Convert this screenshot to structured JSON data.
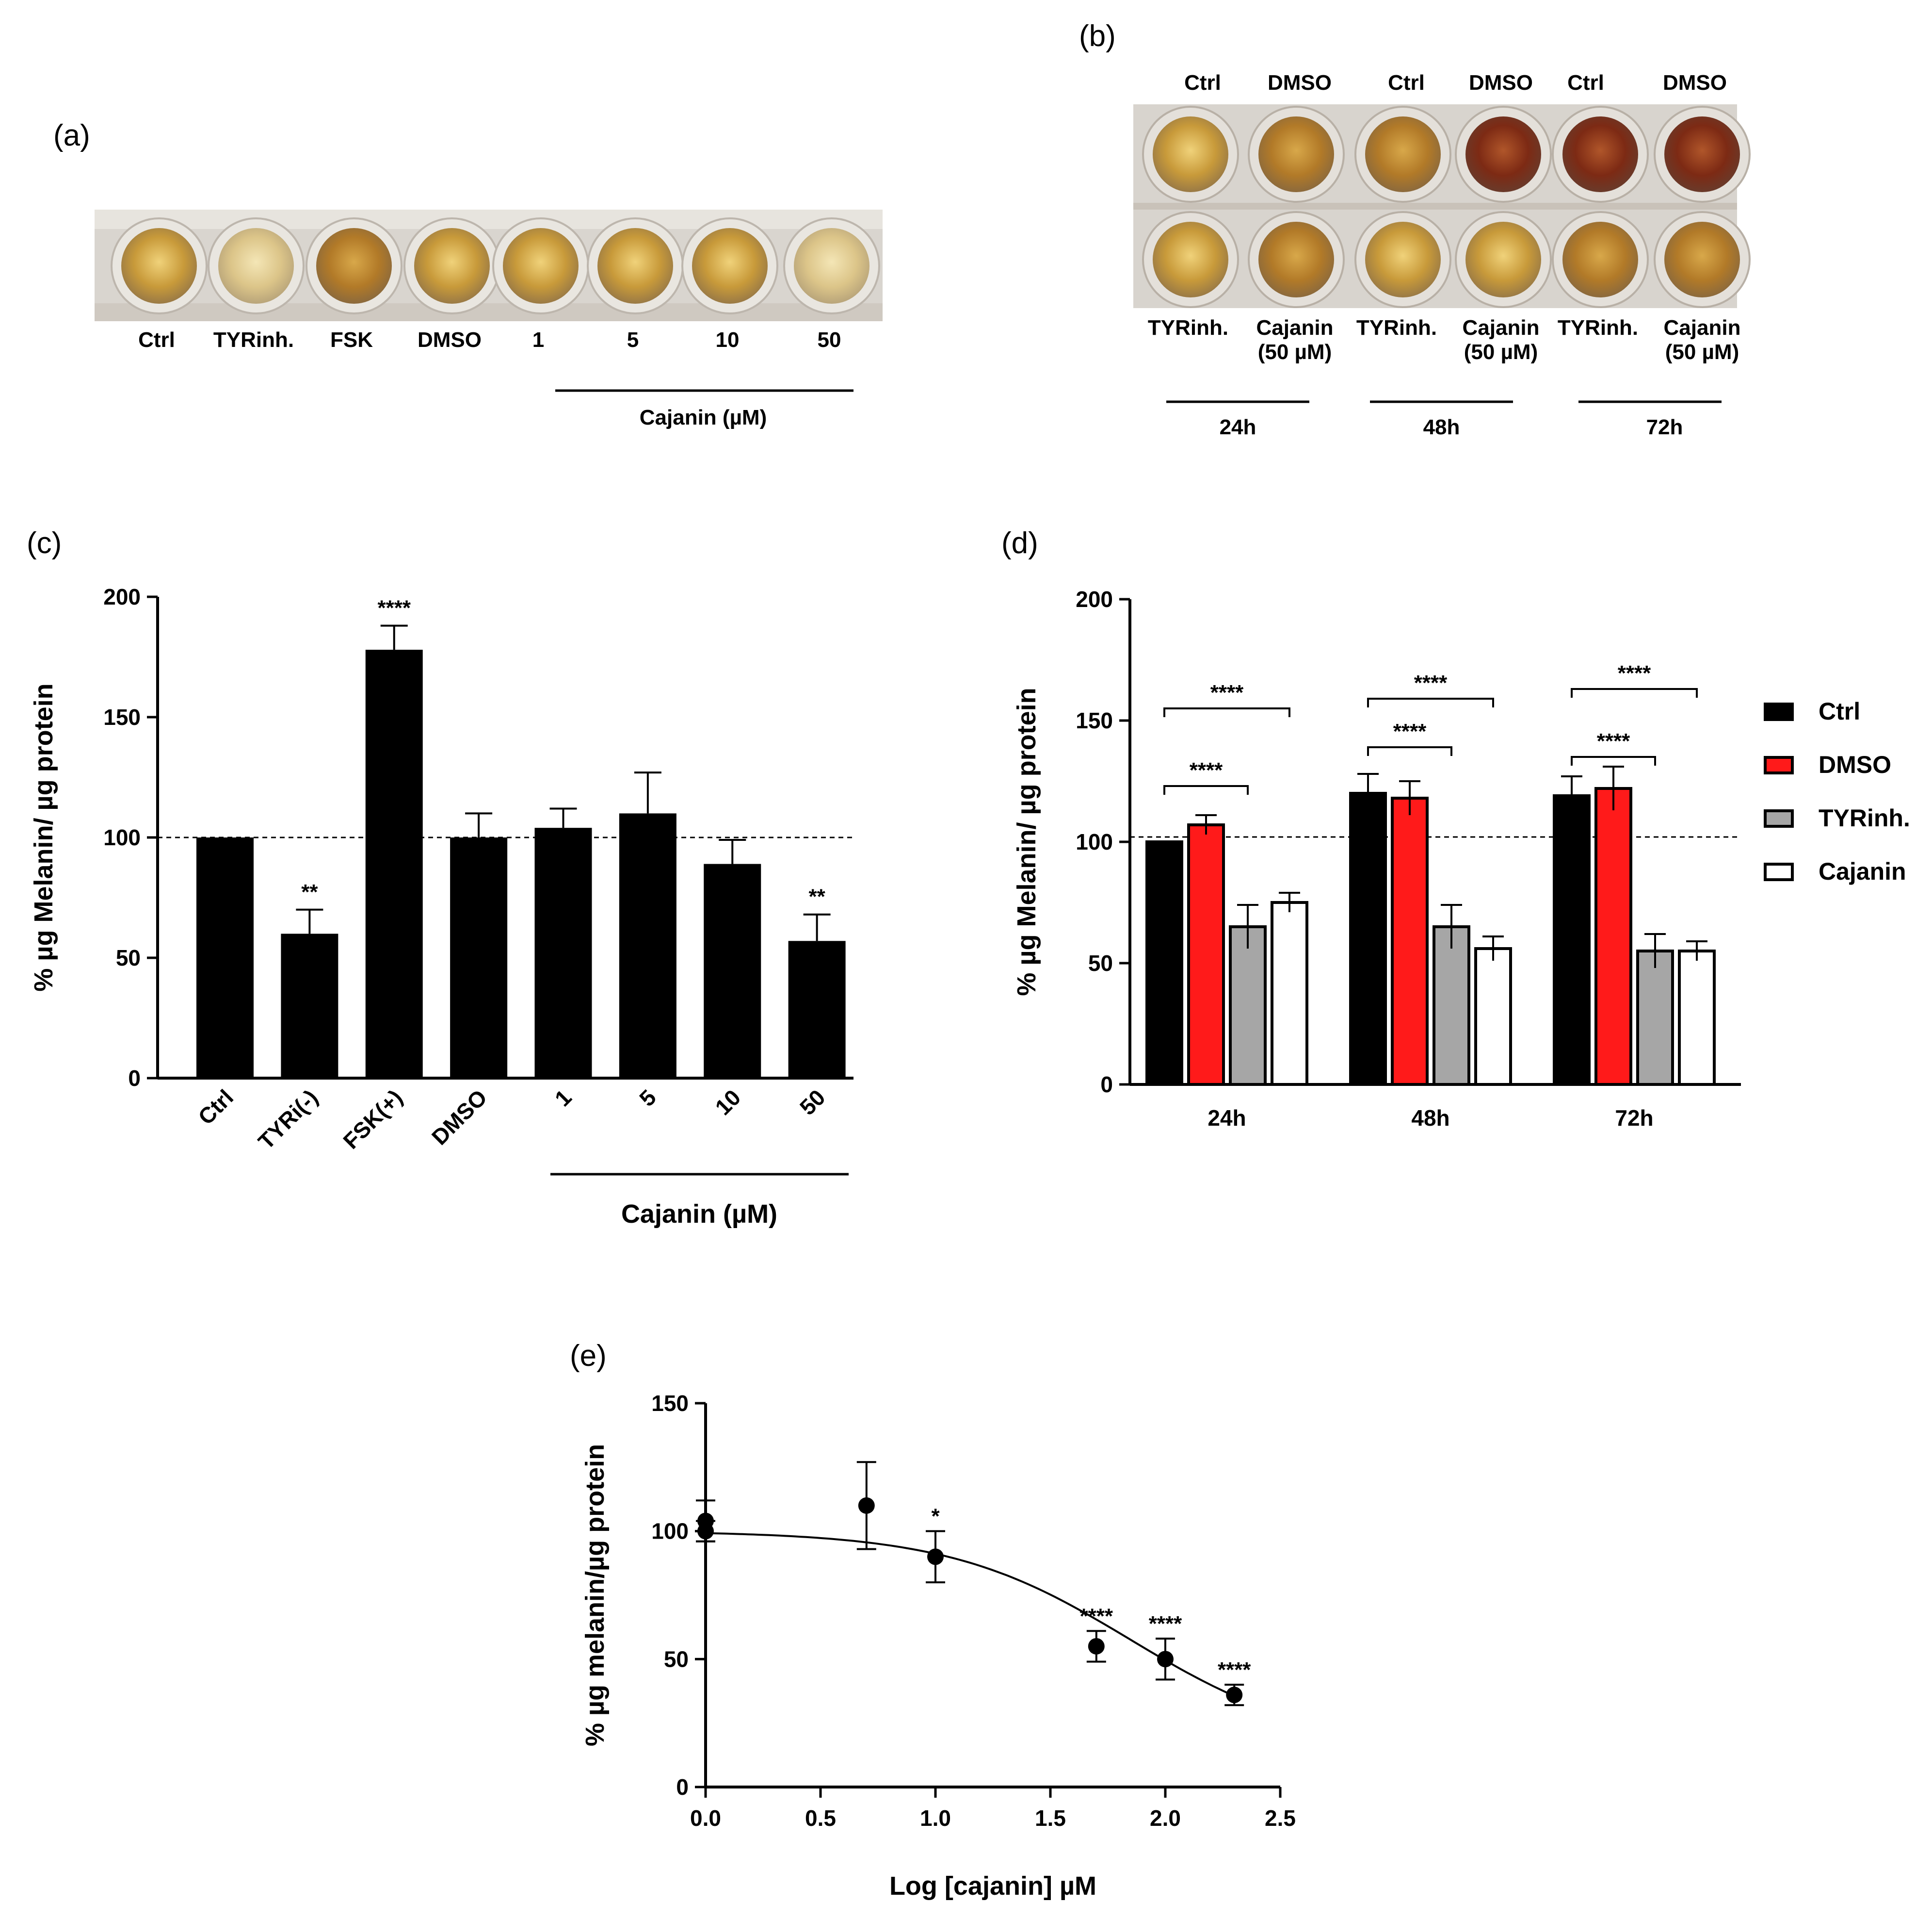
{
  "panels": {
    "a": {
      "label": "(a)",
      "wells": [
        "Ctrl",
        "TYRinh.",
        "FSK",
        "DMSO",
        "1",
        "5",
        "10",
        "50"
      ],
      "group_label": "Cajanin (µM)"
    },
    "b": {
      "label": "(b)",
      "top_labels": [
        "Ctrl",
        "DMSO",
        "Ctrl",
        "DMSO",
        "Ctrl",
        "DMSO"
      ],
      "bottom_labels": [
        {
          "line1": "TYRinh.",
          "line2": ""
        },
        {
          "line1": "Cajanin",
          "line2": "(50 µM)"
        },
        {
          "line1": "TYRinh.",
          "line2": ""
        },
        {
          "line1": "Cajanin",
          "line2": "(50 µM)"
        },
        {
          "line1": "TYRinh.",
          "line2": ""
        },
        {
          "line1": "Cajanin",
          "line2": "(50 µM)"
        }
      ],
      "time_labels": [
        "24h",
        "48h",
        "72h"
      ]
    },
    "c": {
      "label": "(c)"
    },
    "d": {
      "label": "(d)"
    },
    "e": {
      "label": "(e)"
    }
  },
  "colors": {
    "black_bar": "#000000",
    "red_bar": "#ff1a1a",
    "gray_bar": "#a6a6a6",
    "white_bar": "#ffffff",
    "photo_bg": "#d8d3cc",
    "liquid_light": "#d9b25a",
    "liquid_mid": "#c08a2c",
    "liquid_dark": "#8a3f1a"
  },
  "chart_data": [
    {
      "id": "c",
      "type": "bar",
      "title": "",
      "ylabel": "% µg Melanin/ µg protein",
      "xlabel": "",
      "ylim": [
        0,
        200
      ],
      "yticks": [
        0,
        50,
        100,
        150,
        200
      ],
      "reference_line": 100,
      "categories": [
        "Ctrl",
        "TYRi(-)",
        "FSK(+)",
        "DMSO",
        "1",
        "5",
        "10",
        "50"
      ],
      "values": [
        100,
        60,
        178,
        100,
        104,
        110,
        89,
        57
      ],
      "errors": [
        0,
        10,
        10,
        10,
        8,
        17,
        10,
        11
      ],
      "significance": [
        "",
        "**",
        "****",
        "",
        "",
        "",
        "",
        "**"
      ],
      "group_label": "Cajanin (µM)"
    },
    {
      "id": "d",
      "type": "bar",
      "ylabel": "% µg Melanin/ µg protein",
      "ylim": [
        0,
        200
      ],
      "yticks": [
        0,
        50,
        100,
        150,
        200
      ],
      "reference_line": 102,
      "categories": [
        "24h",
        "48h",
        "72h"
      ],
      "series": [
        {
          "name": "Ctrl",
          "values": [
            100,
            120,
            119
          ],
          "errors": [
            0,
            8,
            8
          ]
        },
        {
          "name": "DMSO",
          "values": [
            107,
            118,
            122
          ],
          "errors": [
            4,
            7,
            9
          ]
        },
        {
          "name": "TYRinh.",
          "values": [
            65,
            65,
            55
          ],
          "errors": [
            9,
            9,
            7
          ]
        },
        {
          "name": "Cajanin",
          "values": [
            75,
            56,
            55
          ],
          "errors": [
            4,
            5,
            4
          ]
        }
      ],
      "brackets": [
        {
          "label": "****"
        },
        {
          "label": "****"
        },
        {
          "label": "****"
        },
        {
          "label": "****"
        },
        {
          "label": "****"
        },
        {
          "label": "****"
        }
      ]
    },
    {
      "id": "e",
      "type": "scatter",
      "xlabel": "Log [cajanin] µM",
      "ylabel": "% µg melanin/µg protein",
      "xlim": [
        0,
        2.5
      ],
      "ylim": [
        0,
        150
      ],
      "xticks": [
        "0.0",
        "0.5",
        "1.0",
        "1.5",
        "2.0",
        "2.5"
      ],
      "yticks": [
        0,
        50,
        100,
        150
      ],
      "points": [
        {
          "x": 0.0,
          "y": 100,
          "err": 4,
          "sig": ""
        },
        {
          "x": 0.0,
          "y": 104,
          "err": 8,
          "sig": ""
        },
        {
          "x": 0.7,
          "y": 110,
          "err": 17,
          "sig": ""
        },
        {
          "x": 1.0,
          "y": 90,
          "err": 10,
          "sig": "*"
        },
        {
          "x": 1.7,
          "y": 55,
          "err": 6,
          "sig": "****"
        },
        {
          "x": 2.0,
          "y": 50,
          "err": 8,
          "sig": "****"
        },
        {
          "x": 2.3,
          "y": 36,
          "err": 4,
          "sig": "****"
        }
      ],
      "fit": {
        "top": 100,
        "bottom": 15,
        "logIC50": 1.85,
        "hill": 1.1
      }
    }
  ]
}
